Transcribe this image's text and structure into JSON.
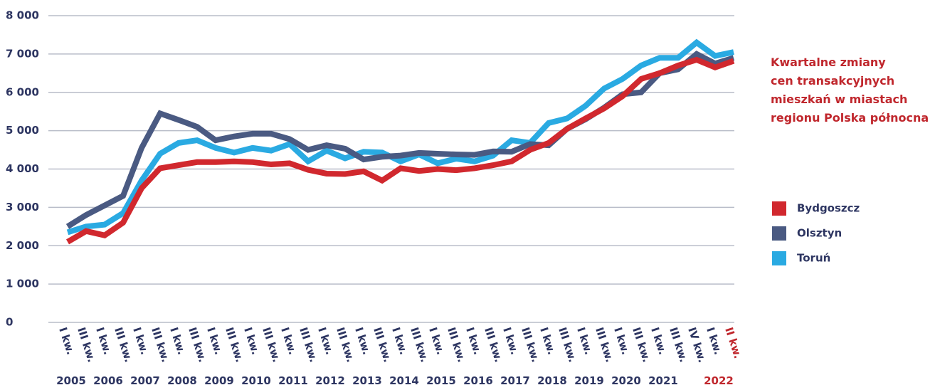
{
  "chart_data": {
    "type": "line",
    "title": [
      "Kwartalne zmiany",
      "cen transakcyjnych",
      "mieszkań w miastach",
      "regionu Polska północna"
    ],
    "categories": [
      "I kw.",
      "III kw.",
      "I kw.",
      "III kw.",
      "I kw.",
      "III kw.",
      "I kw.",
      "III kw.",
      "I kw.",
      "III kw.",
      "I kw.",
      "III kw.",
      "I kw.",
      "III kw.",
      "I kw.",
      "III kw.",
      "I kw.",
      "III kw.",
      "I kw.",
      "III kw.",
      "I kw.",
      "III kw.",
      "I kw.",
      "III kw.",
      "I kw.",
      "III kw.",
      "I kw.",
      "III kw.",
      "I kw.",
      "III kw.",
      "I kw.",
      "III kw.",
      "I kw.",
      "III kw.",
      "IV kw.",
      "I kw.",
      "II kw."
    ],
    "years": [
      "2005",
      null,
      "2006",
      null,
      "2007",
      null,
      "2008",
      null,
      "2009",
      null,
      "2010",
      null,
      "2011",
      null,
      "2012",
      null,
      "2013",
      null,
      "2014",
      null,
      "2015",
      null,
      "2016",
      null,
      "2017",
      null,
      "2018",
      null,
      "2019",
      null,
      "2020",
      null,
      "2021",
      null,
      null,
      "2022",
      null
    ],
    "series": [
      {
        "name": "Bydgoszcz",
        "color": "#d1282e",
        "values": [
          2100,
          2380,
          2270,
          2600,
          3500,
          4020,
          4100,
          4180,
          4180,
          4200,
          4180,
          4120,
          4150,
          3980,
          3880,
          3870,
          3940,
          3700,
          4020,
          3950,
          4000,
          3970,
          4020,
          4100,
          4200,
          4500,
          4680,
          5050,
          5320,
          5580,
          5900,
          6350,
          6500,
          6700,
          6850,
          6650,
          6820
        ]
      },
      {
        "name": "Olsztyn",
        "color": "#4a5a82",
        "values": [
          2500,
          2800,
          3050,
          3300,
          4550,
          5450,
          5280,
          5100,
          4750,
          4850,
          4920,
          4920,
          4780,
          4500,
          4620,
          4530,
          4250,
          4320,
          4350,
          4420,
          4400,
          4380,
          4370,
          4460,
          4450,
          4650,
          4620,
          5050,
          5300,
          5600,
          5950,
          6000,
          6500,
          6600,
          7000,
          6750,
          6900
        ]
      },
      {
        "name": "Toruń",
        "color": "#2aaae2",
        "values": [
          2350,
          2500,
          2550,
          2850,
          3700,
          4400,
          4680,
          4750,
          4550,
          4430,
          4550,
          4480,
          4650,
          4200,
          4480,
          4280,
          4450,
          4430,
          4200,
          4380,
          4150,
          4270,
          4200,
          4350,
          4750,
          4680,
          5200,
          5320,
          5650,
          6100,
          6350,
          6700,
          6900,
          6900,
          7300,
          6950,
          7050
        ]
      }
    ],
    "ylim": [
      0,
      8000
    ],
    "yticks": [
      {
        "value": 0,
        "label": "0"
      },
      {
        "value": 1000,
        "label": "1 000"
      },
      {
        "value": 2000,
        "label": "2 000"
      },
      {
        "value": 3000,
        "label": "3 000"
      },
      {
        "value": 4000,
        "label": "4 000"
      },
      {
        "value": 5000,
        "label": "5 000"
      },
      {
        "value": 6000,
        "label": "6 000"
      },
      {
        "value": 7000,
        "label": "7 000"
      },
      {
        "value": 8000,
        "label": "8 000"
      }
    ],
    "grid": true
  }
}
